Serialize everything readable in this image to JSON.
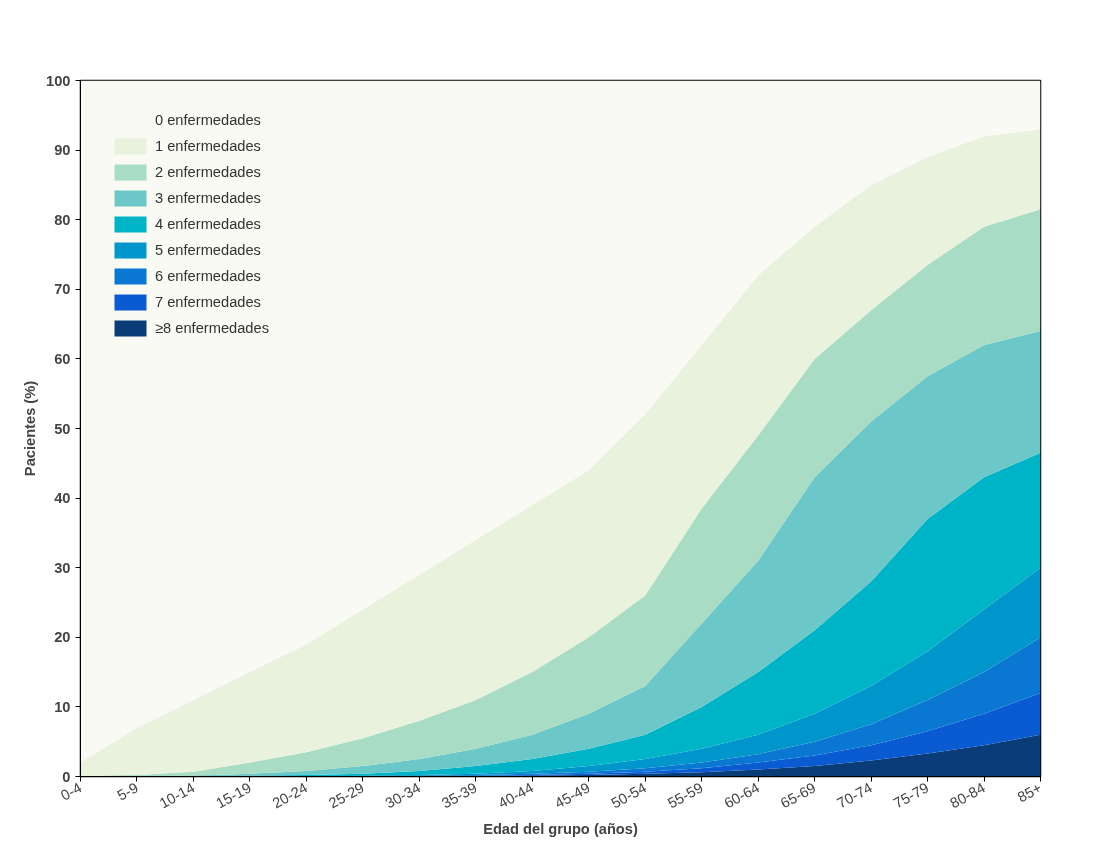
{
  "chart_data": {
    "type": "area",
    "stacked": true,
    "xlabel": "Edad del grupo (años)",
    "ylabel": "Pacientes (%)",
    "categories": [
      "0-4",
      "5-9",
      "10-14",
      "15-19",
      "20-24",
      "25-29",
      "30-34",
      "35-39",
      "40-44",
      "45-49",
      "50-54",
      "55-59",
      "60-64",
      "65-69",
      "70-74",
      "75-79",
      "80-84",
      "85+"
    ],
    "ylim": [
      0,
      100
    ],
    "yticks": [
      0,
      10,
      20,
      30,
      40,
      50,
      60,
      70,
      80,
      90,
      100
    ],
    "grid": false,
    "legend": "top left",
    "series": [
      {
        "name": "≥8 enfermedades",
        "color": "#0a3c78",
        "values": [
          0,
          0,
          0,
          0,
          0,
          0,
          0,
          0,
          0.1,
          0.2,
          0.4,
          0.6,
          1,
          1.5,
          2.3,
          3.3,
          4.5,
          6
        ]
      },
      {
        "name": "7 enfermedades",
        "color": "#0a5ad2",
        "values": [
          0,
          0,
          0,
          0,
          0,
          0,
          0,
          0.1,
          0.1,
          0.2,
          0.3,
          0.6,
          1,
          1.5,
          2.2,
          3.2,
          4.5,
          6
        ]
      },
      {
        "name": "6 enfermedades",
        "color": "#0a78d2",
        "values": [
          0,
          0,
          0,
          0,
          0,
          0,
          0.1,
          0.1,
          0.2,
          0.3,
          0.5,
          0.8,
          1.2,
          2,
          3,
          4.5,
          6,
          8
        ]
      },
      {
        "name": "5 enfermedades",
        "color": "#0096cc",
        "values": [
          0,
          0,
          0,
          0,
          0,
          0.1,
          0.1,
          0.2,
          0.4,
          0.8,
          1.3,
          2,
          2.8,
          4,
          5.5,
          7,
          9,
          10
        ]
      },
      {
        "name": "4 enfermedades",
        "color": "#00b4c8",
        "values": [
          0,
          0,
          0,
          0.1,
          0.2,
          0.3,
          0.6,
          1.1,
          1.7,
          2.5,
          3.5,
          6,
          9,
          12,
          15,
          19,
          19,
          16.5
        ]
      },
      {
        "name": "3 enfermedades",
        "color": "#6cc8c8",
        "values": [
          0,
          0,
          0.1,
          0.3,
          0.6,
          1.1,
          1.7,
          2.5,
          3.5,
          5,
          7,
          12,
          16,
          22,
          23,
          20.5,
          19,
          17.5
        ]
      },
      {
        "name": "2 enfermedades",
        "color": "#a8dcc4",
        "values": [
          0,
          0.2,
          0.6,
          1.6,
          2.7,
          4,
          5.5,
          7,
          9,
          11,
          13,
          16.5,
          18,
          17,
          16,
          16,
          17,
          17.5
        ]
      },
      {
        "name": "1 enfermedades",
        "color": "#e8f2dc",
        "values": [
          2,
          6.8,
          10.3,
          13,
          15.5,
          18.5,
          21,
          23,
          24,
          24,
          26,
          23.5,
          23,
          19,
          18,
          15.5,
          13,
          11.5
        ]
      },
      {
        "name": "0 enfermedades",
        "color": "#f8faf3",
        "values": [
          98,
          93,
          89,
          85,
          81,
          76,
          71,
          66,
          61,
          56,
          48,
          38,
          28,
          21,
          15,
          11,
          8,
          7
        ]
      }
    ]
  }
}
